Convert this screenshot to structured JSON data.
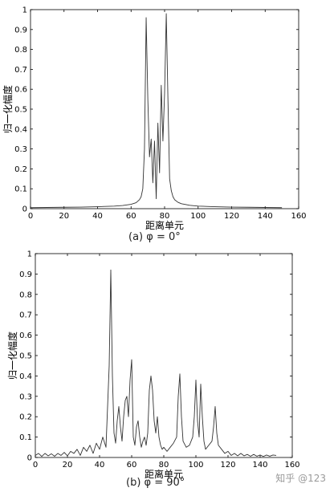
{
  "chart_data": [
    {
      "type": "line",
      "xlabel": "距离单元",
      "ylabel": "归一化幅度",
      "xlim": [
        0,
        160
      ],
      "ylim": [
        0,
        1
      ],
      "xticks": [
        0,
        20,
        40,
        60,
        80,
        100,
        120,
        140,
        160
      ],
      "yticks": [
        0,
        0.1,
        0.2,
        0.3,
        0.4,
        0.5,
        0.6,
        0.7,
        0.8,
        0.9,
        1
      ],
      "caption": "(a) φ = 0°",
      "series": [
        {
          "x": [
            0,
            10,
            20,
            30,
            40,
            50,
            55,
            60,
            63,
            65,
            66,
            67,
            68,
            69,
            70,
            71,
            72,
            73,
            74,
            75,
            76,
            77,
            78,
            79,
            80,
            81,
            82,
            83,
            84,
            85,
            86,
            88,
            90,
            95,
            100,
            110,
            120,
            130,
            140,
            150
          ],
          "y": [
            0.005,
            0.006,
            0.007,
            0.008,
            0.01,
            0.013,
            0.016,
            0.022,
            0.03,
            0.045,
            0.06,
            0.1,
            0.3,
            0.96,
            0.55,
            0.26,
            0.35,
            0.13,
            0.34,
            0.05,
            0.43,
            0.18,
            0.62,
            0.34,
            0.58,
            0.98,
            0.55,
            0.15,
            0.09,
            0.06,
            0.045,
            0.032,
            0.025,
            0.017,
            0.013,
            0.01,
            0.008,
            0.007,
            0.006,
            0.005
          ]
        }
      ]
    },
    {
      "type": "line",
      "xlabel": "距离单元",
      "ylabel": "归一化幅度",
      "xlim": [
        0,
        160
      ],
      "ylim": [
        0,
        1
      ],
      "xticks": [
        0,
        20,
        40,
        60,
        80,
        100,
        120,
        140,
        160
      ],
      "yticks": [
        0,
        0.1,
        0.2,
        0.3,
        0.4,
        0.5,
        0.6,
        0.7,
        0.8,
        0.9,
        1
      ],
      "caption": "(b) φ = 90°",
      "series": [
        {
          "x": [
            0,
            2,
            4,
            6,
            8,
            10,
            12,
            14,
            16,
            18,
            20,
            22,
            24,
            26,
            28,
            30,
            32,
            34,
            36,
            38,
            40,
            42,
            44,
            45,
            46,
            47,
            48,
            49,
            50,
            51,
            52,
            53,
            54,
            55,
            56,
            57,
            58,
            59,
            60,
            61,
            62,
            63,
            64,
            65,
            66,
            67,
            68,
            69,
            70,
            71,
            72,
            73,
            74,
            75,
            76,
            77,
            78,
            79,
            80,
            82,
            84,
            86,
            88,
            89,
            90,
            91,
            92,
            94,
            96,
            98,
            99,
            100,
            101,
            102,
            103,
            104,
            105,
            106,
            108,
            110,
            111,
            112,
            113,
            114,
            116,
            118,
            120,
            122,
            124,
            126,
            128,
            130,
            132,
            134,
            136,
            138,
            140,
            142,
            144,
            146,
            148,
            150
          ],
          "y": [
            0.01,
            0.02,
            0.005,
            0.02,
            0.008,
            0.018,
            0.006,
            0.02,
            0.01,
            0.025,
            0.008,
            0.03,
            0.02,
            0.04,
            0.01,
            0.05,
            0.03,
            0.06,
            0.02,
            0.07,
            0.04,
            0.1,
            0.05,
            0.25,
            0.45,
            0.92,
            0.4,
            0.12,
            0.07,
            0.18,
            0.25,
            0.15,
            0.08,
            0.2,
            0.28,
            0.3,
            0.2,
            0.38,
            0.48,
            0.1,
            0.06,
            0.15,
            0.18,
            0.1,
            0.05,
            0.08,
            0.1,
            0.06,
            0.12,
            0.33,
            0.4,
            0.33,
            0.18,
            0.12,
            0.2,
            0.1,
            0.06,
            0.04,
            0.05,
            0.03,
            0.05,
            0.07,
            0.1,
            0.3,
            0.41,
            0.2,
            0.08,
            0.05,
            0.06,
            0.1,
            0.2,
            0.38,
            0.18,
            0.1,
            0.36,
            0.2,
            0.08,
            0.04,
            0.06,
            0.08,
            0.15,
            0.25,
            0.12,
            0.06,
            0.04,
            0.02,
            0.03,
            0.01,
            0.02,
            0.008,
            0.02,
            0.008,
            0.015,
            0.006,
            0.015,
            0.006,
            0.012,
            0.005,
            0.012,
            0.006,
            0.012,
            0.01
          ]
        }
      ]
    }
  ],
  "watermark": "知乎 @123"
}
